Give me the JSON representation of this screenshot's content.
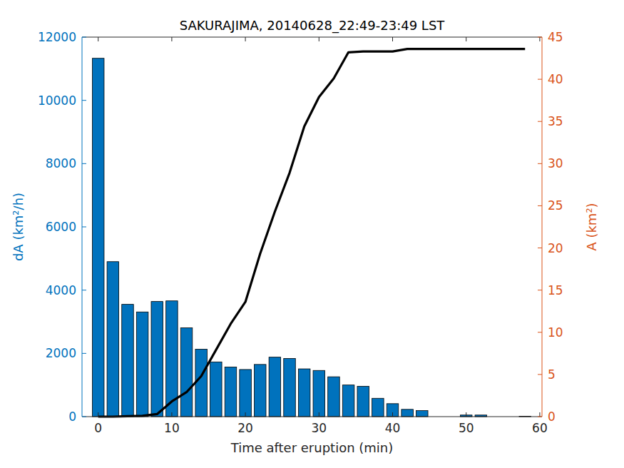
{
  "chart_data": {
    "type": "bar",
    "title": "SAKURAJIMA, 20140628_22:49-23:49 LST",
    "xlabel": "Time after eruption (min)",
    "ylabel": "dA (km²/h)",
    "y2label": "A (km²)",
    "x": [
      0,
      2,
      4,
      6,
      8,
      10,
      12,
      14,
      16,
      18,
      20,
      22,
      24,
      26,
      28,
      30,
      32,
      34,
      36,
      38,
      40,
      42,
      44,
      46,
      48,
      50,
      52,
      54,
      56,
      58
    ],
    "series": [
      {
        "type": "bar",
        "color": "#0072bd",
        "values": [
          11330,
          4900,
          3550,
          3310,
          3640,
          3660,
          2810,
          2130,
          1730,
          1570,
          1490,
          1650,
          1880,
          1840,
          1510,
          1460,
          1260,
          1000,
          960,
          580,
          410,
          230,
          190,
          0,
          0,
          50,
          50,
          0,
          0,
          10
        ]
      },
      {
        "type": "line",
        "axis": "y2",
        "color": "#000000",
        "values": [
          0,
          0,
          0.05,
          0.1,
          0.3,
          1.8,
          2.9,
          4.8,
          7.9,
          11,
          13.6,
          19.3,
          24.3,
          28.9,
          34.4,
          37.9,
          40.1,
          43.2,
          43.3,
          43.3,
          43.3,
          43.6,
          43.6,
          43.6,
          43.6,
          43.6,
          43.6,
          43.6,
          43.6,
          43.6
        ]
      }
    ],
    "xlim": [
      -2.2,
      60.3
    ],
    "xticks": [
      0,
      10,
      20,
      30,
      40,
      50,
      60
    ],
    "ylim": [
      0,
      12000
    ],
    "yticks": [
      0,
      2000,
      4000,
      6000,
      8000,
      10000,
      12000
    ],
    "y2lim": [
      0,
      45
    ],
    "y2ticks": [
      0,
      5,
      10,
      15,
      20,
      25,
      30,
      35,
      40,
      45
    ],
    "grid": false
  }
}
